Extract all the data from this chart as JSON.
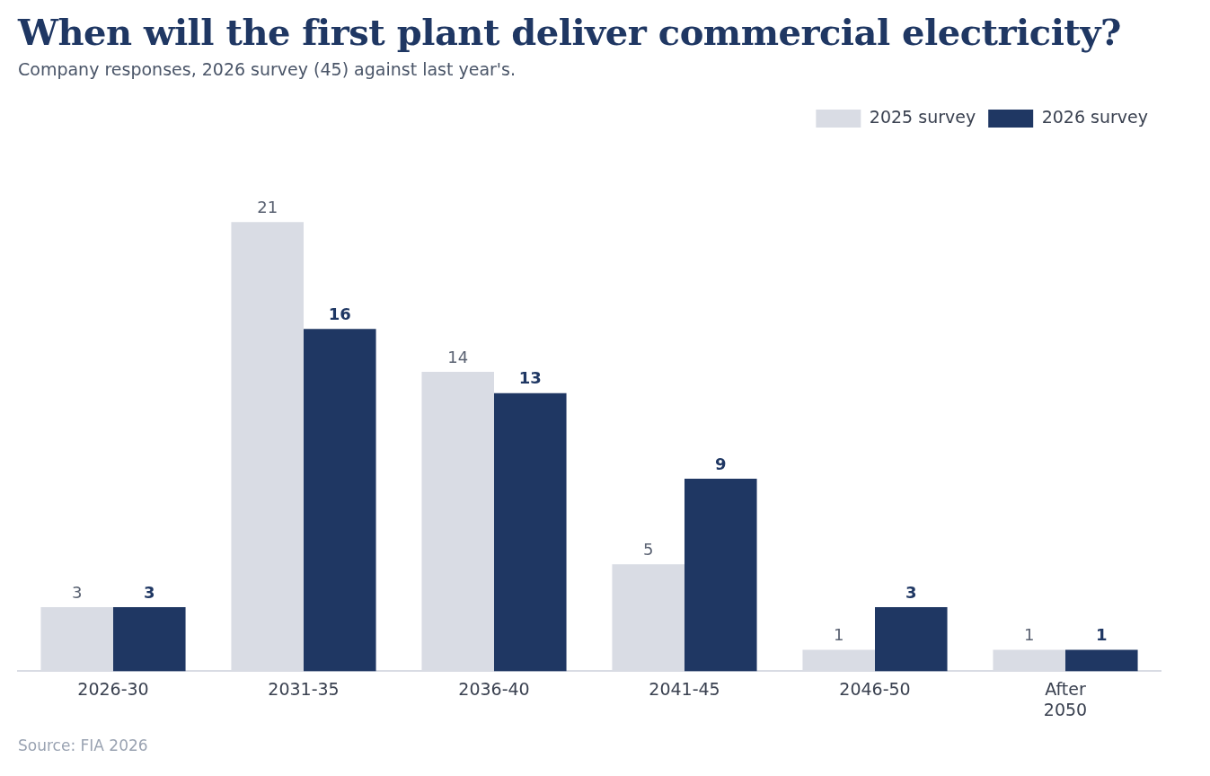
{
  "chart_data": {
    "type": "bar",
    "title": "When will the first plant deliver commercial electricity?",
    "subtitle": "Company responses, 2026 survey (45) against last year's.",
    "categories": [
      "2026-30",
      "2031-35",
      "2036-40",
      "2041-45",
      "2046-50",
      "After 2050"
    ],
    "series": [
      {
        "name": "2025 survey",
        "color": "#d9dce4",
        "values": [
          3,
          21,
          14,
          5,
          1,
          1
        ]
      },
      {
        "name": "2026 survey",
        "color": "#1f3763",
        "values": [
          3,
          16,
          13,
          9,
          3,
          1
        ]
      }
    ],
    "data_labels": true,
    "grid": false,
    "legend": "top right",
    "annotations": [
      "Source: FIA 2026"
    ]
  }
}
